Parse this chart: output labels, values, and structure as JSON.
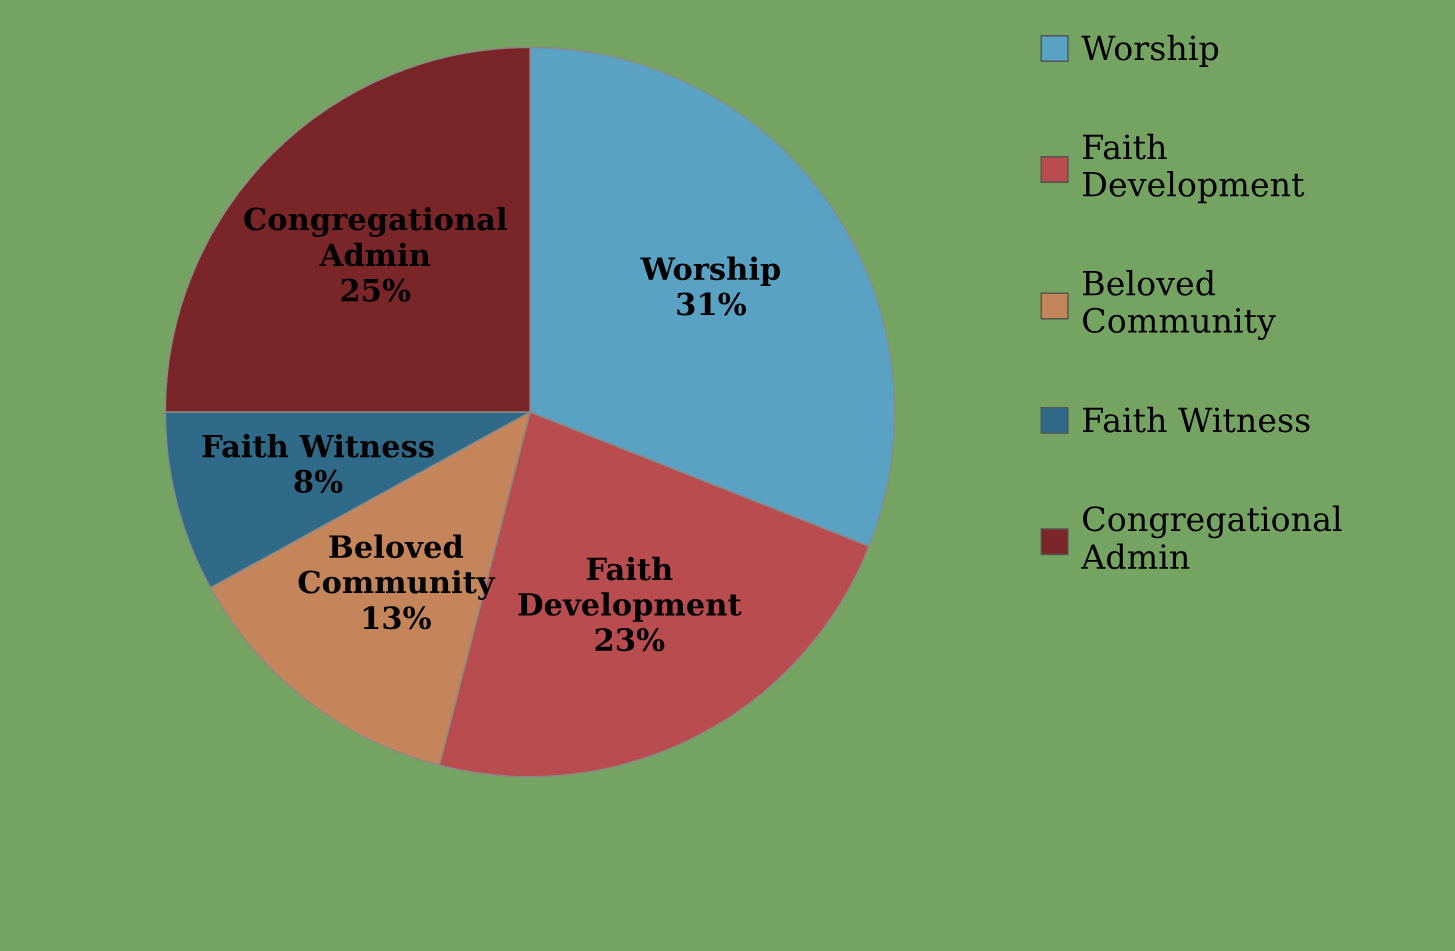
{
  "chart_data": {
    "type": "pie",
    "categories": [
      "Worship",
      "Faith Development",
      "Beloved Community",
      "Faith Witness",
      "Congregational Admin"
    ],
    "values": [
      31,
      23,
      13,
      8,
      25
    ],
    "value_labels": [
      "31%",
      "23%",
      "13%",
      "8%",
      "25%"
    ],
    "colors": [
      "#5aa2c4",
      "#b94c4e",
      "#c4855a",
      "#2f6a88",
      "#7a2628"
    ],
    "legend": "right"
  }
}
